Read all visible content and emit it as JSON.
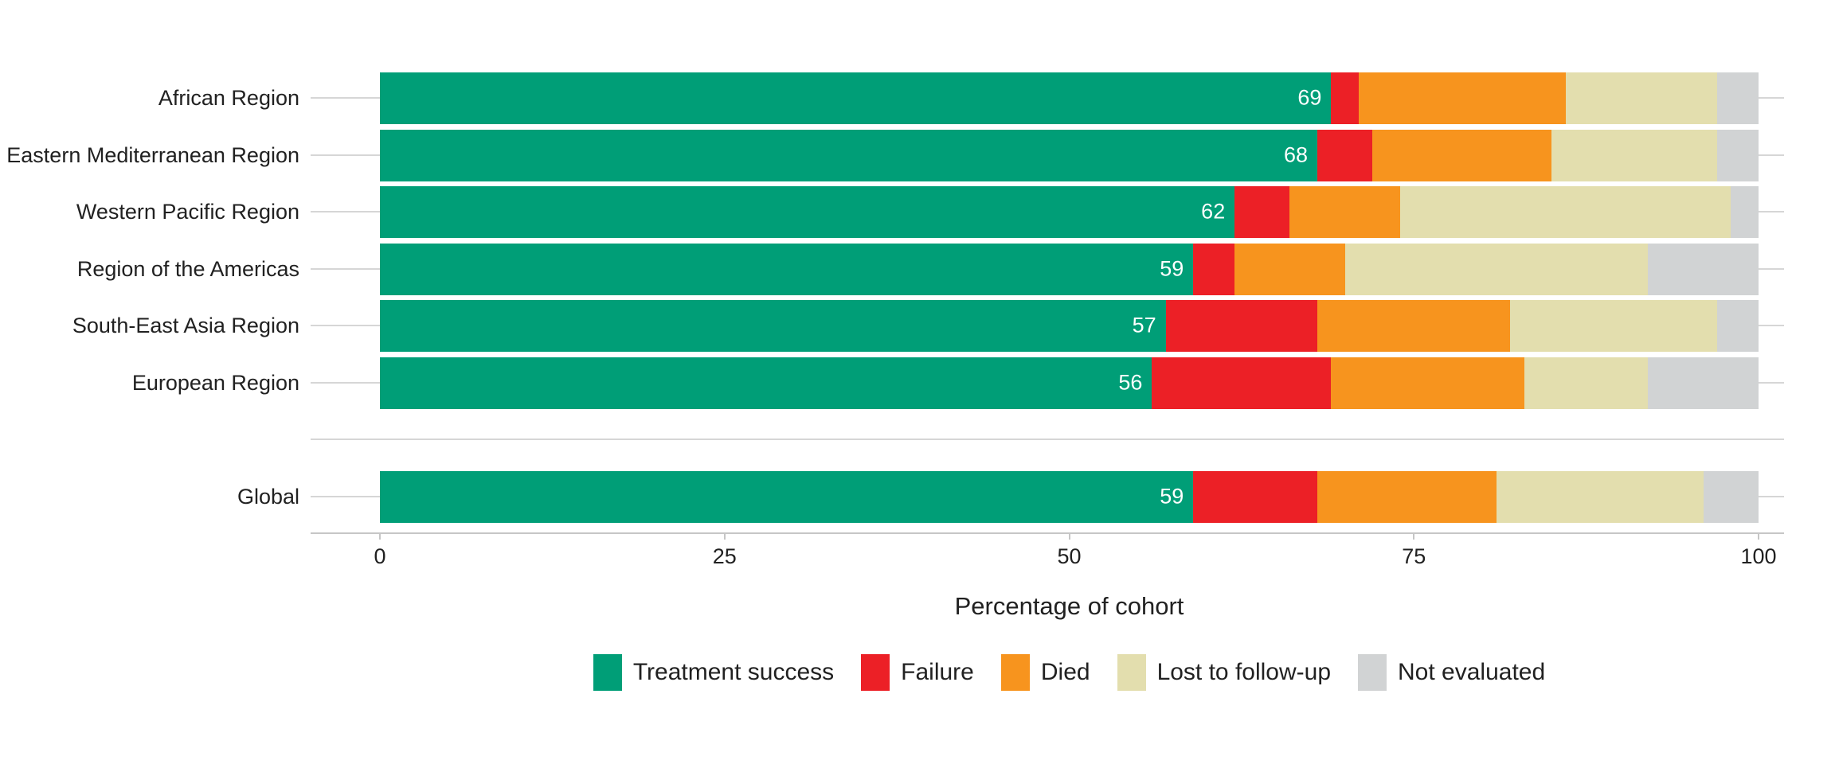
{
  "chart_data": {
    "type": "bar",
    "orientation": "horizontal",
    "stacked": true,
    "title": "",
    "xlabel": "Percentage of cohort",
    "ylabel": "",
    "xlim": [
      0,
      100
    ],
    "xticks": [
      "0",
      "25",
      "50",
      "75",
      "100"
    ],
    "grid": "horizontal-category-lines",
    "legend_position": "bottom",
    "series": [
      {
        "name": "Treatment success",
        "color": "#009E77"
      },
      {
        "name": "Failure",
        "color": "#EC2026"
      },
      {
        "name": "Died",
        "color": "#F7941E"
      },
      {
        "name": "Lost to follow-up",
        "color": "#E3DEAE"
      },
      {
        "name": "Not evaluated",
        "color": "#D1D3D4"
      }
    ],
    "rows": [
      {
        "label": "African Region",
        "spacer": false,
        "values": [
          69,
          2,
          15,
          11,
          3
        ],
        "bar_label": "69"
      },
      {
        "label": "Eastern Mediterranean Region",
        "spacer": false,
        "values": [
          68,
          4,
          13,
          12,
          3
        ],
        "bar_label": "68"
      },
      {
        "label": "Western Pacific Region",
        "spacer": false,
        "values": [
          62,
          4,
          8,
          24,
          2
        ],
        "bar_label": "62"
      },
      {
        "label": "Region of the Americas",
        "spacer": false,
        "values": [
          59,
          3,
          8,
          22,
          8
        ],
        "bar_label": "59"
      },
      {
        "label": "South-East Asia Region",
        "spacer": false,
        "values": [
          57,
          11,
          14,
          15,
          3
        ],
        "bar_label": "57"
      },
      {
        "label": "European Region",
        "spacer": false,
        "values": [
          56,
          13,
          14,
          9,
          8
        ],
        "bar_label": "56"
      },
      {
        "label": "",
        "spacer": true,
        "values": [],
        "bar_label": ""
      },
      {
        "label": "Global",
        "spacer": false,
        "values": [
          59,
          9,
          13,
          15,
          4
        ],
        "bar_label": "59"
      }
    ]
  }
}
